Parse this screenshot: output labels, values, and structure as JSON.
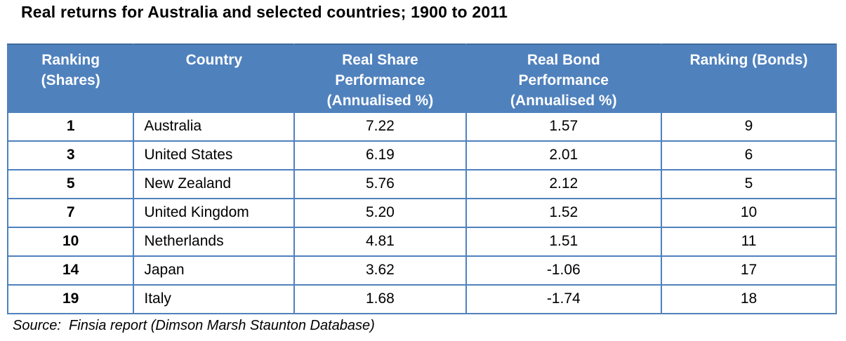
{
  "title": "Real returns for Australia and selected countries; 1900 to 2011",
  "source_line": "Source:  Finsia report (Dimson Marsh Staunton Database)",
  "colors": {
    "header_bg": "#4f81bd",
    "header_text": "#ffffff",
    "border": "#4f81bd",
    "body_text": "#000000",
    "background": "#ffffff"
  },
  "table": {
    "headers": [
      "Ranking\n(Shares)",
      "Country",
      "Real Share\nPerformance\n(Annualised %)",
      "Real Bond\nPerformance\n(Annualised %)",
      "Ranking (Bonds)"
    ],
    "col_names": [
      "ranking-shares-cell",
      "country-cell",
      "real-share-performance-cell",
      "real-bond-performance-cell",
      "ranking-bonds-cell"
    ],
    "rows": [
      [
        "1",
        "Australia",
        "7.22",
        "1.57",
        "9"
      ],
      [
        "3",
        "United States",
        "6.19",
        "2.01",
        "6"
      ],
      [
        "5",
        "New Zealand",
        "5.76",
        "2.12",
        "5"
      ],
      [
        "7",
        "United Kingdom",
        "5.20",
        "1.52",
        "10"
      ],
      [
        "10",
        "Netherlands",
        "4.81",
        "1.51",
        "11"
      ],
      [
        "14",
        "Japan",
        "3.62",
        "-1.06",
        "17"
      ],
      [
        "19",
        "Italy",
        "1.68",
        "-1.74",
        "18"
      ]
    ]
  },
  "chart_data": {
    "type": "table",
    "title": "Real returns for Australia and selected countries; 1900 to 2011",
    "columns": [
      "Ranking (Shares)",
      "Country",
      "Real Share Performance (Annualised %)",
      "Real Bond Performance (Annualised %)",
      "Ranking (Bonds)"
    ],
    "rows": [
      [
        1,
        "Australia",
        7.22,
        1.57,
        9
      ],
      [
        3,
        "United States",
        6.19,
        2.01,
        6
      ],
      [
        5,
        "New Zealand",
        5.76,
        2.12,
        5
      ],
      [
        7,
        "United Kingdom",
        5.2,
        1.52,
        10
      ],
      [
        10,
        "Netherlands",
        4.81,
        1.51,
        11
      ],
      [
        14,
        "Japan",
        3.62,
        -1.06,
        17
      ],
      [
        19,
        "Italy",
        1.68,
        -1.74,
        18
      ]
    ],
    "source": "Finsia report (Dimson Marsh Staunton Database)"
  }
}
